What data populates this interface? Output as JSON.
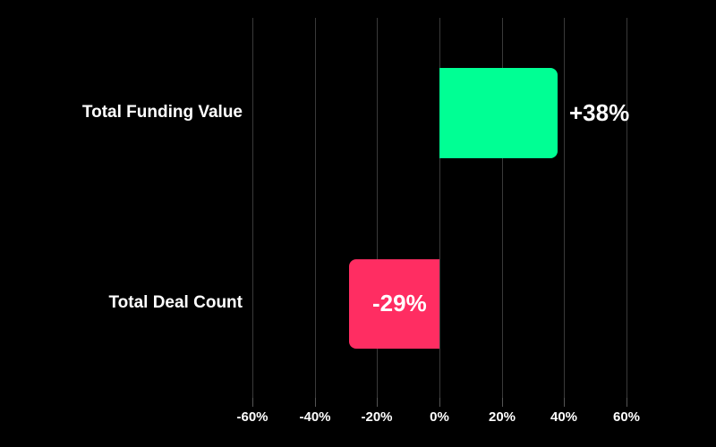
{
  "chart_data": {
    "type": "bar",
    "orientation": "horizontal",
    "title": "",
    "xlabel": "",
    "ylabel": "",
    "categories": [
      "Total Funding Value",
      "Total Deal Count"
    ],
    "values": [
      38,
      -29
    ],
    "value_labels": [
      "+38%",
      "-29%"
    ],
    "colors": [
      "#00FF94",
      "#FF2D62"
    ],
    "xlim": [
      -60,
      60
    ],
    "x_ticks": [
      -60,
      -40,
      -20,
      0,
      20,
      40,
      60
    ],
    "x_tick_labels": [
      "-60%",
      "-40%",
      "-20%",
      "0%",
      "20%",
      "40%",
      "60%"
    ],
    "grid": true,
    "legend": "none"
  },
  "colors": {
    "background": "#000000",
    "positive": "#00FF94",
    "negative": "#FF2D62",
    "grid": "#3a3a3a"
  }
}
